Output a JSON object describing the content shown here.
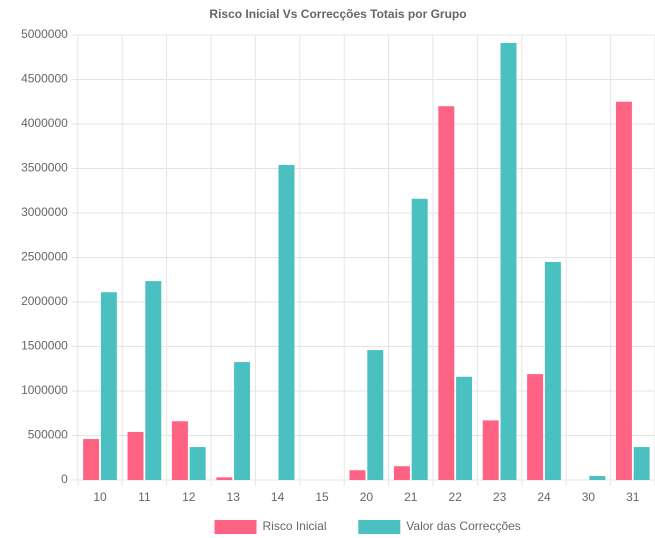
{
  "chart_data": {
    "type": "bar",
    "title": "Risco Inicial Vs Correcções Totais por Grupo",
    "categories": [
      "10",
      "11",
      "12",
      "13",
      "14",
      "15",
      "20",
      "21",
      "22",
      "23",
      "24",
      "30",
      "31"
    ],
    "series": [
      {
        "name": "Risco Inicial",
        "color": "#ff6384",
        "values": [
          460000,
          540000,
          660000,
          30000,
          0,
          0,
          110000,
          155000,
          4200000,
          670000,
          1190000,
          0,
          4250000
        ]
      },
      {
        "name": "Valor das Correcções",
        "color": "#4bc0c0",
        "values": [
          2110000,
          2235000,
          370000,
          1325000,
          3540000,
          0,
          1460000,
          3160000,
          1160000,
          4910000,
          2450000,
          45000,
          370000
        ]
      }
    ],
    "ylim": [
      0,
      5000000
    ],
    "yticks": [
      0,
      500000,
      1000000,
      1500000,
      2000000,
      2500000,
      3000000,
      3500000,
      4000000,
      4500000,
      5000000
    ],
    "grid": true,
    "legend": "bottom"
  }
}
